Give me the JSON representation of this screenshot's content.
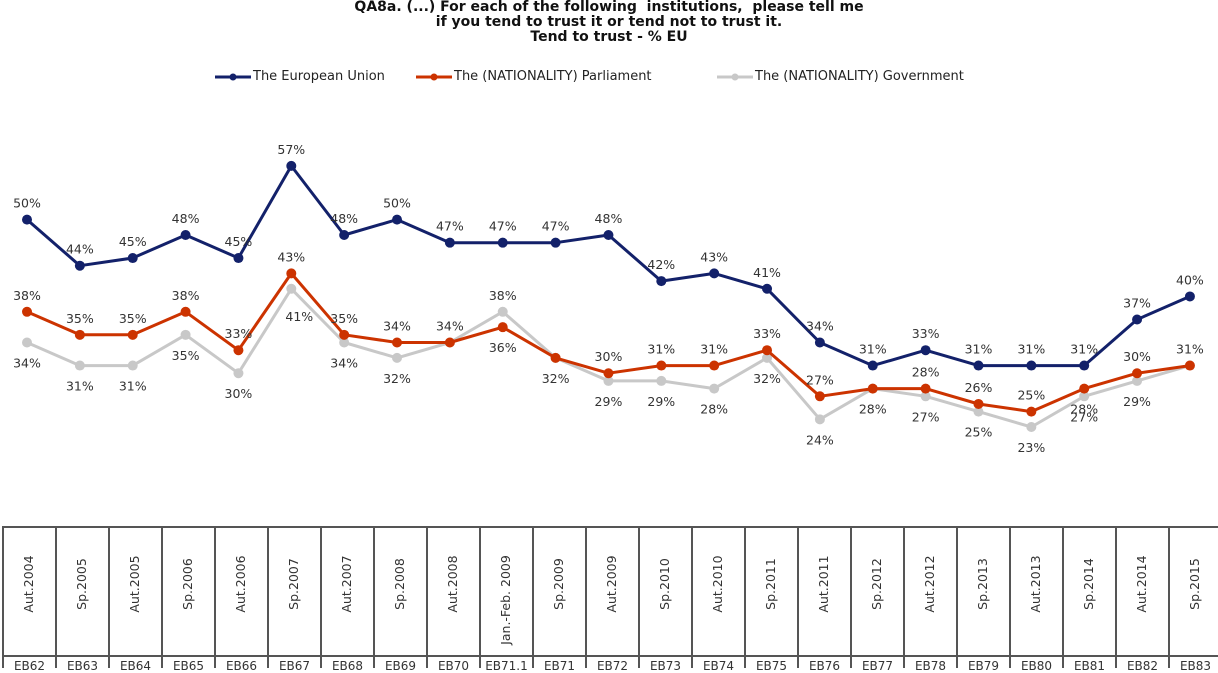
{
  "chart_data": {
    "type": "line",
    "title": [
      "QA8a. (...) For each of the following  institutions,  please tell me",
      "if you tend to trust it or tend not to trust it.",
      "Tend to trust - % EU"
    ],
    "xlabel": "",
    "ylabel": "",
    "ylim": [
      20,
      60
    ],
    "grid": false,
    "legend_position": "top-center",
    "categories": [
      "Aut.2004",
      "Sp.2005",
      "Aut.2005",
      "Sp.2006",
      "Aut.2006",
      "Sp.2007",
      "Aut.2007",
      "Sp.2008",
      "Aut.2008",
      "Jan.-Feb. 2009",
      "Sp.2009",
      "Aut.2009",
      "Sp.2010",
      "Aut.2010",
      "Sp.2011",
      "Aut.2011",
      "Sp.2012",
      "Aut.2012",
      "Sp.2013",
      "Aut.2013",
      "Sp.2014",
      "Aut.2014",
      "Sp.2015"
    ],
    "survey_codes": [
      "EB62",
      "EB63",
      "EB64",
      "EB65",
      "EB66",
      "EB67",
      "EB68",
      "EB69",
      "EB70",
      "EB71.1",
      "EB71",
      "EB72",
      "EB73",
      "EB74",
      "EB75",
      "EB76",
      "EB77",
      "EB78",
      "EB79",
      "EB80",
      "EB81",
      "EB82",
      "EB83"
    ],
    "series": [
      {
        "name": "The European Union",
        "color": "#13216a",
        "values": [
          50,
          44,
          45,
          48,
          45,
          57,
          48,
          50,
          47,
          47,
          47,
          48,
          42,
          43,
          41,
          34,
          31,
          33,
          31,
          31,
          31,
          37,
          40
        ]
      },
      {
        "name": "The (NATIONALITY) Parliament",
        "color": "#cc3300",
        "values": [
          38,
          35,
          35,
          38,
          33,
          43,
          35,
          34,
          34,
          36,
          32,
          30,
          31,
          31,
          33,
          27,
          28,
          28,
          26,
          25,
          28,
          30,
          31
        ]
      },
      {
        "name": "The (NATIONALITY) Government",
        "color": "#c8c8c8",
        "values": [
          34,
          31,
          31,
          35,
          30,
          41,
          34,
          32,
          34,
          38,
          32,
          29,
          29,
          28,
          32,
          24,
          28,
          27,
          25,
          23,
          27,
          29,
          31
        ]
      }
    ],
    "value_suffix": "%"
  }
}
